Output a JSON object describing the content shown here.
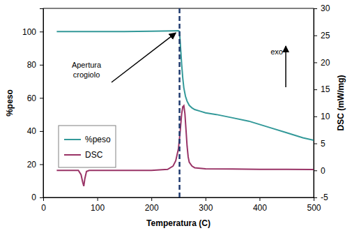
{
  "chart_data": {
    "type": "line",
    "xlabel": "Temperatura (C)",
    "ylabel": "%peso",
    "y2label": "DSC (mW/mg)",
    "xlim": [
      0,
      500
    ],
    "xticks": [
      0,
      100,
      200,
      300,
      400,
      500
    ],
    "ylim": [
      0,
      114
    ],
    "yticks": [
      0,
      20,
      40,
      60,
      80,
      100
    ],
    "y2lim": [
      -5,
      30
    ],
    "y2ticks": [
      -5,
      0,
      5,
      10,
      15,
      20,
      25,
      30
    ],
    "legend": "left",
    "vlines": [
      252
    ],
    "annotations": [
      {
        "text": "Apertura crogiolo",
        "x": 249,
        "y": 100.5
      },
      {
        "text": "exo"
      }
    ],
    "series": [
      {
        "name": "%peso",
        "color": "#339999",
        "axis": "y",
        "x": [
          25,
          50,
          100,
          150,
          200,
          220,
          240,
          250,
          252,
          254,
          256,
          258,
          260,
          263,
          266,
          270,
          275,
          280,
          290,
          300,
          320,
          350,
          380,
          400,
          420,
          450,
          480,
          500
        ],
        "values": [
          100,
          100,
          100,
          100,
          100.2,
          100.3,
          100.4,
          100.5,
          100,
          90,
          80,
          72,
          66,
          61,
          58,
          55.5,
          54,
          53,
          52,
          51,
          50,
          48,
          46,
          44,
          42,
          39,
          36,
          34.5
        ]
      },
      {
        "name": "DSC",
        "color": "#993366",
        "axis": "y2",
        "x": [
          25,
          50,
          65,
          70,
          73,
          75,
          77,
          80,
          85,
          100,
          150,
          200,
          230,
          240,
          245,
          250,
          253,
          256,
          258,
          260,
          262,
          264,
          266,
          268,
          270,
          275,
          280,
          290,
          300,
          350,
          400,
          450,
          500
        ],
        "values": [
          0,
          0,
          0,
          -0.8,
          -2.2,
          -2.9,
          -1.5,
          -0.2,
          0,
          0,
          0,
          0,
          0.2,
          0.8,
          1.8,
          4,
          7,
          10.5,
          11.8,
          12,
          10.5,
          7.5,
          4.5,
          2.5,
          1.5,
          0.8,
          0.5,
          0.4,
          0.3,
          0.25,
          0.2,
          0.2,
          0.15
        ]
      }
    ]
  }
}
